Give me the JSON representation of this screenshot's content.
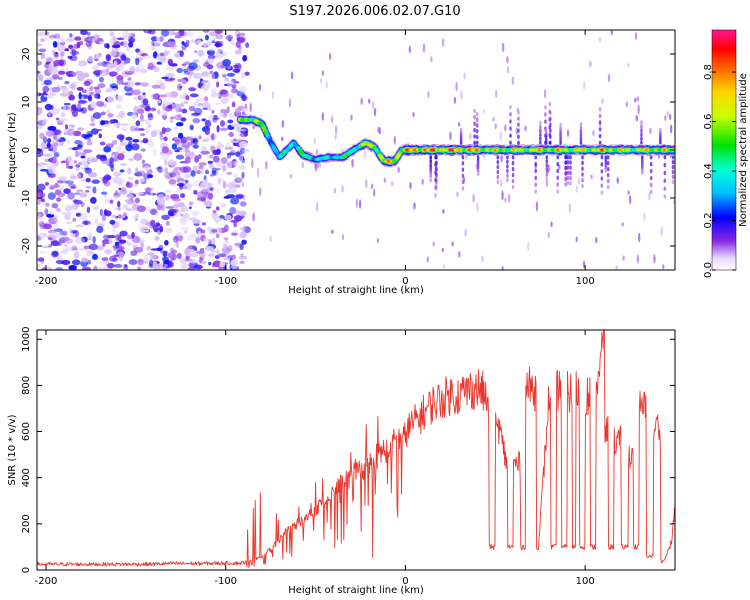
{
  "title": "S197.2026.006.02.07.G10",
  "chart_data": [
    {
      "type": "heatmap",
      "name": "spectrogram",
      "xlabel": "Height of straight line (km)",
      "ylabel": "Frequency (Hz)",
      "xlim": [
        -205,
        150
      ],
      "ylim": [
        -25,
        25
      ],
      "xticks": [
        -200,
        -100,
        0,
        100
      ],
      "xtick_labels": [
        "-200",
        "-100",
        "0",
        "100"
      ],
      "yticks": [
        -20,
        -10,
        0,
        10,
        20
      ],
      "ytick_labels": [
        "-20",
        "-10",
        "0",
        "10",
        "20"
      ],
      "colorbar": {
        "label": "Normalized spectral amplitude",
        "range": [
          0,
          0.97
        ],
        "ticks": [
          0.0,
          0.2,
          0.4,
          0.6,
          0.8
        ],
        "tick_labels": [
          "0.0",
          "0.2",
          "0.4",
          "0.6",
          "0.8"
        ]
      },
      "noise_region_x": [
        -205,
        -92
      ],
      "ridge": [
        {
          "x": -92,
          "f": 6.3,
          "amp": 0.6
        },
        {
          "x": -85,
          "f": 6.3,
          "amp": 0.7
        },
        {
          "x": -80,
          "f": 5.5,
          "amp": 0.6
        },
        {
          "x": -74,
          "f": 1.0,
          "amp": 0.4
        },
        {
          "x": -70,
          "f": -1.5,
          "amp": 0.4
        },
        {
          "x": -62,
          "f": 1.5,
          "amp": 0.5
        },
        {
          "x": -57,
          "f": -1.0,
          "amp": 0.5
        },
        {
          "x": -50,
          "f": -2.0,
          "amp": 0.45
        },
        {
          "x": -43,
          "f": -1.5,
          "amp": 0.4
        },
        {
          "x": -35,
          "f": -1.5,
          "amp": 0.5
        },
        {
          "x": -28,
          "f": 0.2,
          "amp": 0.5
        },
        {
          "x": -22,
          "f": 1.5,
          "amp": 0.7
        },
        {
          "x": -17,
          "f": 0.5,
          "amp": 0.7
        },
        {
          "x": -12,
          "f": -2.3,
          "amp": 0.75
        },
        {
          "x": -6,
          "f": -2.4,
          "amp": 0.75
        },
        {
          "x": -2,
          "f": 0.0,
          "amp": 0.8
        },
        {
          "x": 10,
          "f": 0.0,
          "amp": 0.9
        },
        {
          "x": 25,
          "f": 0.0,
          "amp": 0.9
        },
        {
          "x": 38,
          "f": 0.0,
          "amp": 0.85
        },
        {
          "x": 45,
          "f": 0.0,
          "amp": 0.75
        },
        {
          "x": 55,
          "f": 0.0,
          "amp": 0.7
        },
        {
          "x": 70,
          "f": 0.0,
          "amp": 0.75
        },
        {
          "x": 85,
          "f": 0.0,
          "amp": 0.75
        },
        {
          "x": 100,
          "f": 0.0,
          "amp": 0.75
        },
        {
          "x": 110,
          "f": 0.0,
          "amp": 0.8
        },
        {
          "x": 125,
          "f": 0.0,
          "amp": 0.7
        },
        {
          "x": 140,
          "f": 0.0,
          "amp": 0.75
        },
        {
          "x": 150,
          "f": 0.0,
          "amp": 0.7
        }
      ]
    },
    {
      "type": "line",
      "name": "snr",
      "xlabel": "Height of straight line (km)",
      "ylabel": "SNR (10 * v/v)",
      "xlim": [
        -205,
        150
      ],
      "ylim": [
        0,
        1040
      ],
      "xticks": [
        -200,
        -100,
        0,
        100
      ],
      "xtick_labels": [
        "-200",
        "-100",
        "0",
        "100"
      ],
      "yticks": [
        0,
        200,
        400,
        600,
        800,
        1000
      ],
      "ytick_labels": [
        "0",
        "200",
        "400",
        "600",
        "800",
        "1000"
      ],
      "color": "#e8372e",
      "series": [
        {
          "name": "SNR",
          "x": [
            -205,
            -190,
            -175,
            -160,
            -145,
            -130,
            -115,
            -100,
            -92,
            -85,
            -80,
            -75,
            -70,
            -65,
            -60,
            -55,
            -50,
            -45,
            -40,
            -35,
            -30,
            -25,
            -20,
            -15,
            -10,
            -5,
            0,
            5,
            10,
            15,
            20,
            25,
            30,
            35,
            40,
            42,
            44,
            46,
            47,
            48,
            52,
            56,
            58,
            62,
            66,
            68,
            72,
            74,
            80,
            82,
            86,
            88,
            92,
            94,
            96,
            98,
            102,
            104,
            108,
            110,
            112,
            114,
            118,
            122,
            126,
            128,
            132,
            136,
            140,
            144,
            148,
            150
          ],
          "values": [
            25,
            25,
            25,
            25,
            25,
            28,
            28,
            30,
            30,
            40,
            60,
            90,
            130,
            170,
            200,
            230,
            260,
            300,
            340,
            380,
            410,
            440,
            470,
            500,
            530,
            560,
            600,
            640,
            680,
            720,
            740,
            760,
            760,
            780,
            790,
            780,
            760,
            700,
            100,
            100,
            620,
            470,
            100,
            460,
            100,
            790,
            780,
            100,
            760,
            100,
            780,
            100,
            770,
            100,
            780,
            100,
            760,
            100,
            820,
            1030,
            600,
            100,
            560,
            100,
            500,
            100,
            700,
            60,
            620,
            40,
            120,
            270
          ]
        }
      ]
    }
  ]
}
